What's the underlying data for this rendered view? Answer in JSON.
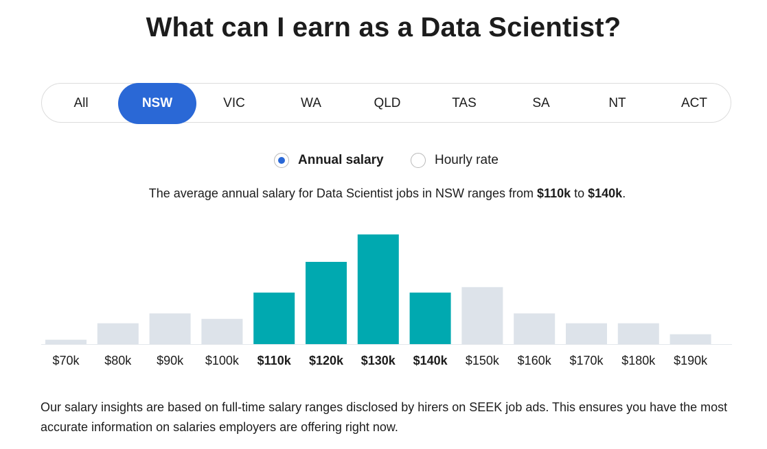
{
  "title": "What can I earn as a Data Scientist?",
  "tabs": [
    {
      "label": "All",
      "active": false
    },
    {
      "label": "NSW",
      "active": true
    },
    {
      "label": "VIC",
      "active": false
    },
    {
      "label": "WA",
      "active": false
    },
    {
      "label": "QLD",
      "active": false
    },
    {
      "label": "TAS",
      "active": false
    },
    {
      "label": "SA",
      "active": false
    },
    {
      "label": "NT",
      "active": false
    },
    {
      "label": "ACT",
      "active": false
    }
  ],
  "rate_toggle": {
    "annual_label": "Annual salary",
    "hourly_label": "Hourly rate",
    "selected": "annual"
  },
  "summary": {
    "prefix": "The average annual salary for Data Scientist jobs in NSW ranges from ",
    "low": "$110k",
    "middle": " to ",
    "high": "$140k",
    "suffix": "."
  },
  "colors": {
    "accent": "#2a68d6",
    "highlight_bar": "#00a9b0",
    "muted_bar": "#dde3ea"
  },
  "chart_data": {
    "type": "bar",
    "categories": [
      "$70k",
      "$80k",
      "$90k",
      "$100k",
      "$110k",
      "$120k",
      "$130k",
      "$140k",
      "$150k",
      "$160k",
      "$170k",
      "$180k",
      "$190k"
    ],
    "values": [
      4,
      19,
      28,
      23,
      47,
      75,
      100,
      47,
      52,
      28,
      19,
      19,
      9
    ],
    "highlighted": [
      false,
      false,
      false,
      false,
      true,
      true,
      true,
      true,
      false,
      false,
      false,
      false,
      false
    ],
    "ylim": [
      0,
      100
    ]
  },
  "footer": "Our salary insights are based on full-time salary ranges disclosed by hirers on SEEK job ads. This ensures you have the most accurate information on salaries employers are offering right now."
}
